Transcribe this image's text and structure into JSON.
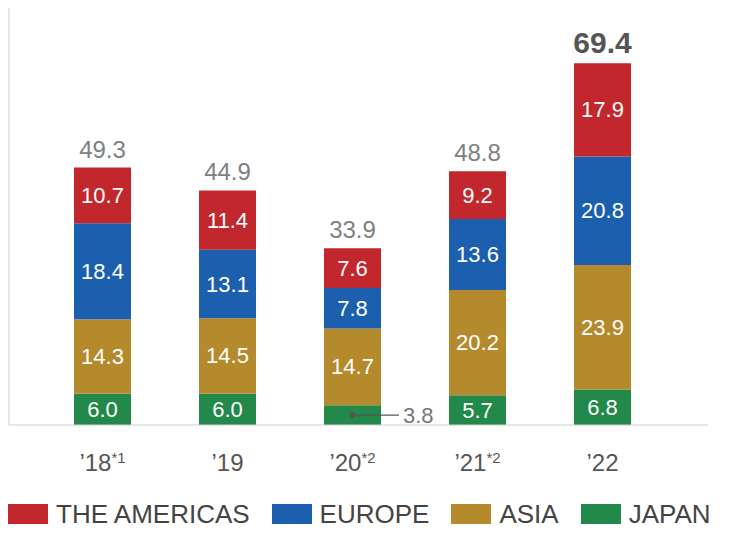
{
  "chart_data": {
    "type": "bar",
    "stacked": true,
    "data_labels": true,
    "tick_labels": "x",
    "legend": "bottom",
    "categories": [
      "’18*1",
      "’19",
      "’20*2",
      "’21*2",
      "’22"
    ],
    "ylim": [
      0,
      80
    ],
    "totals": [
      49.3,
      44.9,
      33.9,
      48.8,
      69.4
    ],
    "series": [
      {
        "name": "THE AMERICAS",
        "color": "#c1272d",
        "values": [
          10.7,
          11.4,
          7.6,
          9.2,
          17.9
        ]
      },
      {
        "name": "EUROPE",
        "color": "#1b5fae",
        "values": [
          18.4,
          13.1,
          7.8,
          13.6,
          20.8
        ]
      },
      {
        "name": "ASIA",
        "color": "#b48a2c",
        "values": [
          14.3,
          14.5,
          14.7,
          20.2,
          23.9
        ]
      },
      {
        "name": "JAPAN",
        "color": "#22894a",
        "values": [
          6.0,
          6.0,
          3.8,
          5.7,
          6.8
        ],
        "value_labels": [
          "6.0",
          "6.0",
          "3.8",
          "5.7",
          "6.8"
        ]
      }
    ]
  }
}
